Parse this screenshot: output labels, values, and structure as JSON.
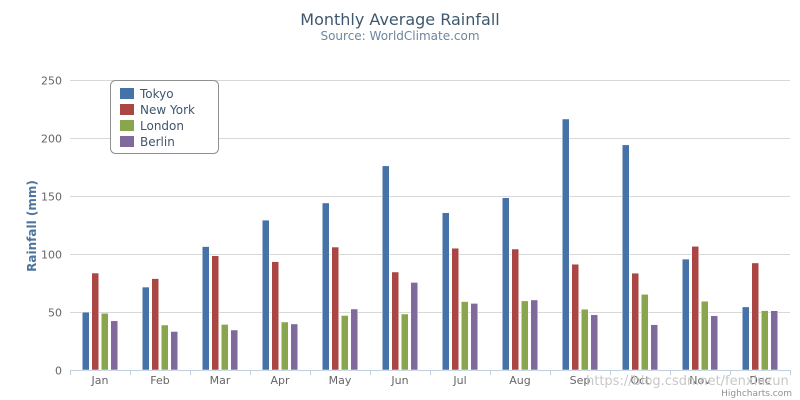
{
  "chart_data": {
    "type": "bar",
    "title": "Monthly Average Rainfall",
    "subtitle": "Source: WorldClimate.com",
    "xlabel": "",
    "ylabel": "Rainfall (mm)",
    "ylim": [
      0,
      250
    ],
    "yticks": [
      0,
      50,
      100,
      150,
      200,
      250
    ],
    "grid": true,
    "legend_position": "top-left",
    "categories": [
      "Jan",
      "Feb",
      "Mar",
      "Apr",
      "May",
      "Jun",
      "Jul",
      "Aug",
      "Sep",
      "Oct",
      "Nov",
      "Dec"
    ],
    "series": [
      {
        "name": "Tokyo",
        "color": "#4572A7",
        "values": [
          49.9,
          71.5,
          106.4,
          129.2,
          144.0,
          176.0,
          135.6,
          148.5,
          216.4,
          194.1,
          95.6,
          54.4
        ]
      },
      {
        "name": "New York",
        "color": "#AA4643",
        "values": [
          83.6,
          78.8,
          98.5,
          93.4,
          106.0,
          84.5,
          105.0,
          104.3,
          91.2,
          83.5,
          106.6,
          92.3
        ]
      },
      {
        "name": "London",
        "color": "#89A54E",
        "values": [
          48.9,
          38.8,
          39.3,
          41.4,
          47.0,
          48.3,
          59.0,
          59.6,
          52.4,
          65.2,
          59.3,
          51.2
        ]
      },
      {
        "name": "Berlin",
        "color": "#80699B",
        "values": [
          42.4,
          33.2,
          34.5,
          39.7,
          52.6,
          75.5,
          57.4,
          60.4,
          47.6,
          39.1,
          46.8,
          51.1
        ]
      }
    ]
  },
  "credits": "Highcharts.com",
  "watermark": "https://blog.csdn.net/fenxiuzun"
}
